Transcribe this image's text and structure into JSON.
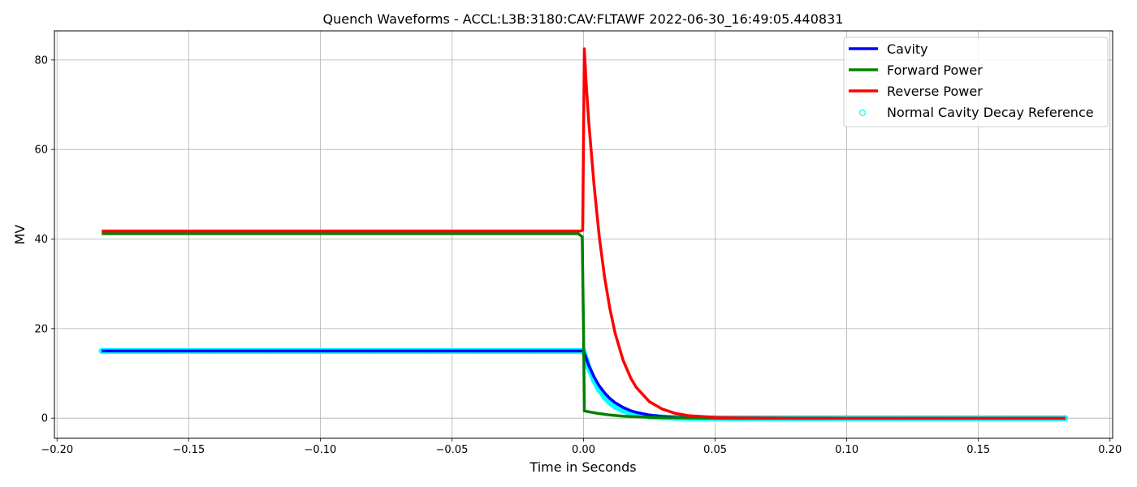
{
  "chart_data": {
    "type": "line",
    "title": "Quench Waveforms - ACCL:L3B:3180:CAV:FLTAWF 2022-06-30_16:49:05.440831",
    "xlabel": "Time in Seconds",
    "ylabel": "MV",
    "xlim": [
      -0.201,
      0.201
    ],
    "ylim": [
      -4.5,
      86.5
    ],
    "xticks": [
      -0.2,
      -0.15,
      -0.1,
      -0.05,
      0.0,
      0.05,
      0.1,
      0.15,
      0.2
    ],
    "xtick_labels": [
      "−0.20",
      "−0.15",
      "−0.10",
      "−0.05",
      "0.00",
      "0.05",
      "0.10",
      "0.15",
      "0.20"
    ],
    "yticks": [
      0,
      20,
      40,
      60,
      80
    ],
    "ytick_labels": [
      "0",
      "20",
      "40",
      "60",
      "80"
    ],
    "grid": true,
    "legend_position": "top-right",
    "series": [
      {
        "name": "Cavity",
        "color": "#0000ff",
        "style": "line",
        "x": [
          -0.183,
          -0.15,
          -0.1,
          -0.05,
          -0.001,
          0.0,
          0.002,
          0.004,
          0.006,
          0.008,
          0.01,
          0.012,
          0.015,
          0.018,
          0.02,
          0.025,
          0.03,
          0.035,
          0.04,
          0.05,
          0.06,
          0.08,
          0.1,
          0.15,
          0.183
        ],
        "y": [
          15.0,
          15.0,
          15.0,
          15.0,
          15.0,
          15.0,
          11.75,
          9.2,
          7.2,
          5.65,
          4.4,
          3.45,
          2.4,
          1.65,
          1.3,
          0.7,
          0.37,
          0.2,
          0.1,
          0.03,
          0.01,
          0.0,
          0.0,
          0.0,
          0.0
        ]
      },
      {
        "name": "Forward Power",
        "color": "#008000",
        "style": "line",
        "x": [
          -0.183,
          -0.15,
          -0.1,
          -0.05,
          -0.002,
          -0.0005,
          0.0,
          0.0003,
          0.005,
          0.01,
          0.015,
          0.02,
          0.025,
          0.03,
          0.04,
          0.05,
          0.1,
          0.183
        ],
        "y": [
          41.2,
          41.2,
          41.2,
          41.2,
          41.2,
          40.5,
          20.0,
          1.6,
          1.1,
          0.7,
          0.45,
          0.3,
          0.2,
          0.12,
          0.05,
          0.02,
          0.0,
          0.0
        ]
      },
      {
        "name": "Reverse Power",
        "color": "#ff0000",
        "style": "line",
        "x": [
          -0.183,
          -0.15,
          -0.1,
          -0.05,
          -0.001,
          -0.0003,
          0.0003,
          0.001,
          0.002,
          0.004,
          0.006,
          0.008,
          0.01,
          0.012,
          0.015,
          0.018,
          0.02,
          0.025,
          0.03,
          0.035,
          0.04,
          0.05,
          0.06,
          0.08,
          0.1,
          0.15,
          0.183
        ],
        "y": [
          41.8,
          41.8,
          41.8,
          41.8,
          41.8,
          42.0,
          82.5,
          75.0,
          66.0,
          52.0,
          40.5,
          31.5,
          24.5,
          19.0,
          13.0,
          8.9,
          6.9,
          3.7,
          2.0,
          1.05,
          0.56,
          0.16,
          0.05,
          0.0,
          0.0,
          0.0,
          0.0
        ]
      },
      {
        "name": "Normal Cavity Decay Reference",
        "color": "#00ffff",
        "style": "scatter",
        "x": [
          -0.183,
          -0.16,
          -0.14,
          -0.12,
          -0.1,
          -0.08,
          -0.06,
          -0.04,
          -0.02,
          -0.001,
          0.0,
          0.002,
          0.004,
          0.006,
          0.008,
          0.01,
          0.012,
          0.015,
          0.018,
          0.02,
          0.025,
          0.03,
          0.035,
          0.04,
          0.05,
          0.06,
          0.08,
          0.1,
          0.12,
          0.14,
          0.16,
          0.183
        ],
        "y": [
          15.0,
          15.0,
          15.0,
          15.0,
          15.0,
          15.0,
          15.0,
          15.0,
          15.0,
          15.0,
          15.0,
          11.2,
          8.4,
          6.3,
          4.7,
          3.5,
          2.6,
          1.7,
          1.1,
          0.8,
          0.35,
          0.15,
          0.06,
          0.02,
          0.0,
          0.0,
          0.0,
          0.0,
          0.0,
          0.0,
          0.0,
          0.0
        ]
      }
    ]
  }
}
